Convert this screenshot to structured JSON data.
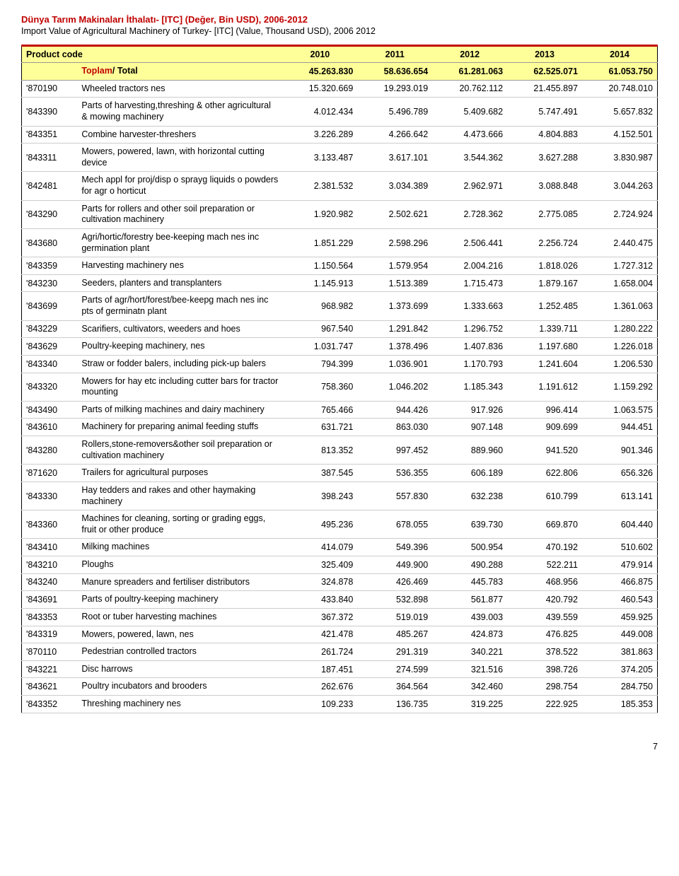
{
  "title_tr": "Dünya Tarım Makinaları İthalatı- [ITC] (Değer, Bin USD), 2006-2012",
  "title_en": "Import Value of Agricultural Machinery of Turkey- [ITC] (Value, Thousand USD), 2006 2012",
  "header": {
    "product_code": "Product code",
    "years": [
      "2010",
      "2011",
      "2012",
      "2013",
      "2014"
    ]
  },
  "total": {
    "label_tr": "Toplam",
    "label_en": "/ Total",
    "values": [
      "45.263.830",
      "58.636.654",
      "61.281.063",
      "62.525.071",
      "61.053.750"
    ]
  },
  "rows": [
    {
      "code": "'870190",
      "desc": "Wheeled tractors nes",
      "v": [
        "15.320.669",
        "19.293.019",
        "20.762.112",
        "21.455.897",
        "20.748.010"
      ]
    },
    {
      "code": "'843390",
      "desc": "Parts of harvesting,threshing & other agricultural & mowing machinery",
      "v": [
        "4.012.434",
        "5.496.789",
        "5.409.682",
        "5.747.491",
        "5.657.832"
      ]
    },
    {
      "code": "'843351",
      "desc": "Combine harvester-threshers",
      "v": [
        "3.226.289",
        "4.266.642",
        "4.473.666",
        "4.804.883",
        "4.152.501"
      ]
    },
    {
      "code": "'843311",
      "desc": "Mowers, powered, lawn, with horizontal cutting device",
      "v": [
        "3.133.487",
        "3.617.101",
        "3.544.362",
        "3.627.288",
        "3.830.987"
      ]
    },
    {
      "code": "'842481",
      "desc": "Mech appl for proj/disp o sprayg liquids o powders for agr o horticut",
      "v": [
        "2.381.532",
        "3.034.389",
        "2.962.971",
        "3.088.848",
        "3.044.263"
      ]
    },
    {
      "code": "'843290",
      "desc": "Parts for rollers and other soil preparation or cultivation machinery",
      "v": [
        "1.920.982",
        "2.502.621",
        "2.728.362",
        "2.775.085",
        "2.724.924"
      ]
    },
    {
      "code": "'843680",
      "desc": "Agri/hortic/forestry bee-keeping mach nes inc germination plant",
      "v": [
        "1.851.229",
        "2.598.296",
        "2.506.441",
        "2.256.724",
        "2.440.475"
      ]
    },
    {
      "code": "'843359",
      "desc": "Harvesting machinery nes",
      "v": [
        "1.150.564",
        "1.579.954",
        "2.004.216",
        "1.818.026",
        "1.727.312"
      ]
    },
    {
      "code": "'843230",
      "desc": "Seeders, planters and transplanters",
      "v": [
        "1.145.913",
        "1.513.389",
        "1.715.473",
        "1.879.167",
        "1.658.004"
      ]
    },
    {
      "code": "'843699",
      "desc": "Parts of agr/hort/forest/bee-keepg mach nes inc pts of germinatn plant",
      "v": [
        "968.982",
        "1.373.699",
        "1.333.663",
        "1.252.485",
        "1.361.063"
      ]
    },
    {
      "code": "'843229",
      "desc": "Scarifiers, cultivators, weeders and hoes",
      "v": [
        "967.540",
        "1.291.842",
        "1.296.752",
        "1.339.711",
        "1.280.222"
      ]
    },
    {
      "code": "'843629",
      "desc": "Poultry-keeping machinery, nes",
      "v": [
        "1.031.747",
        "1.378.496",
        "1.407.836",
        "1.197.680",
        "1.226.018"
      ]
    },
    {
      "code": "'843340",
      "desc": "Straw or fodder balers, including pick-up balers",
      "v": [
        "794.399",
        "1.036.901",
        "1.170.793",
        "1.241.604",
        "1.206.530"
      ]
    },
    {
      "code": "'843320",
      "desc": "Mowers for hay etc including cutter bars for tractor mounting",
      "v": [
        "758.360",
        "1.046.202",
        "1.185.343",
        "1.191.612",
        "1.159.292"
      ]
    },
    {
      "code": "'843490",
      "desc": "Parts of milking machines and dairy machinery",
      "v": [
        "765.466",
        "944.426",
        "917.926",
        "996.414",
        "1.063.575"
      ]
    },
    {
      "code": "'843610",
      "desc": "Machinery for preparing animal feeding stuffs",
      "v": [
        "631.721",
        "863.030",
        "907.148",
        "909.699",
        "944.451"
      ]
    },
    {
      "code": "'843280",
      "desc": "Rollers,stone-removers&other soil preparation or cultivation machinery",
      "v": [
        "813.352",
        "997.452",
        "889.960",
        "941.520",
        "901.346"
      ]
    },
    {
      "code": "'871620",
      "desc": "Trailers for agricultural purposes",
      "v": [
        "387.545",
        "536.355",
        "606.189",
        "622.806",
        "656.326"
      ]
    },
    {
      "code": "'843330",
      "desc": "Hay tedders and rakes and other haymaking machinery",
      "v": [
        "398.243",
        "557.830",
        "632.238",
        "610.799",
        "613.141"
      ]
    },
    {
      "code": "'843360",
      "desc": "Machines for cleaning, sorting or grading eggs, fruit or other produce",
      "v": [
        "495.236",
        "678.055",
        "639.730",
        "669.870",
        "604.440"
      ]
    },
    {
      "code": "'843410",
      "desc": "Milking machines",
      "v": [
        "414.079",
        "549.396",
        "500.954",
        "470.192",
        "510.602"
      ]
    },
    {
      "code": "'843210",
      "desc": "Ploughs",
      "v": [
        "325.409",
        "449.900",
        "490.288",
        "522.211",
        "479.914"
      ]
    },
    {
      "code": "'843240",
      "desc": "Manure spreaders and fertiliser distributors",
      "v": [
        "324.878",
        "426.469",
        "445.783",
        "468.956",
        "466.875"
      ]
    },
    {
      "code": "'843691",
      "desc": "Parts of poultry-keeping machinery",
      "v": [
        "433.840",
        "532.898",
        "561.877",
        "420.792",
        "460.543"
      ]
    },
    {
      "code": "'843353",
      "desc": "Root or tuber harvesting machines",
      "v": [
        "367.372",
        "519.019",
        "439.003",
        "439.559",
        "459.925"
      ]
    },
    {
      "code": "'843319",
      "desc": "Mowers, powered, lawn, nes",
      "v": [
        "421.478",
        "485.267",
        "424.873",
        "476.825",
        "449.008"
      ]
    },
    {
      "code": "'870110",
      "desc": "Pedestrian controlled tractors",
      "v": [
        "261.724",
        "291.319",
        "340.221",
        "378.522",
        "381.863"
      ]
    },
    {
      "code": "'843221",
      "desc": "Disc harrows",
      "v": [
        "187.451",
        "274.599",
        "321.516",
        "398.726",
        "374.205"
      ]
    },
    {
      "code": "'843621",
      "desc": "Poultry incubators and brooders",
      "v": [
        "262.676",
        "364.564",
        "342.460",
        "298.754",
        "284.750"
      ]
    },
    {
      "code": "'843352",
      "desc": "Threshing machinery nes",
      "v": [
        "109.233",
        "136.735",
        "319.225",
        "222.925",
        "185.353"
      ]
    }
  ],
  "page_number": "7"
}
